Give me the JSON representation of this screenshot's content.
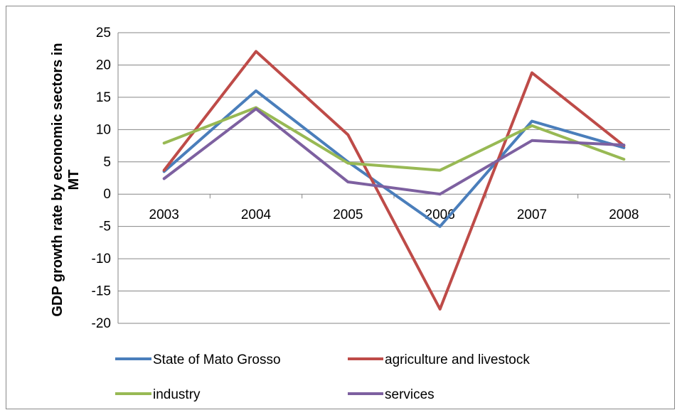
{
  "chart_data": {
    "type": "line",
    "title": "",
    "xlabel": "",
    "ylabel": "GDP growth rate by economic sectors in MT",
    "ylabel_lines": [
      "GDP growth rate by economic sectors in",
      "MT"
    ],
    "ylim": [
      -20,
      25
    ],
    "yticks": [
      25,
      20,
      15,
      10,
      5,
      0,
      -5,
      -10,
      -15,
      -20
    ],
    "categories": [
      "2003",
      "2004",
      "2005",
      "2006",
      "2007",
      "2008"
    ],
    "grid": true,
    "legend_position": "bottom",
    "series": [
      {
        "name": "State of Mato Grosso",
        "color": "#4a7ebb",
        "values": [
          3.5,
          16.0,
          5.0,
          -5.0,
          11.3,
          7.2
        ]
      },
      {
        "name": "agriculture and livestock",
        "color": "#be4b48",
        "values": [
          3.7,
          22.1,
          9.2,
          -17.8,
          18.8,
          7.5
        ]
      },
      {
        "name": "industry",
        "color": "#98b954",
        "values": [
          7.9,
          13.4,
          4.8,
          3.7,
          10.6,
          5.4
        ]
      },
      {
        "name": "services",
        "color": "#7d60a0",
        "values": [
          2.4,
          13.2,
          1.9,
          0.0,
          8.3,
          7.6
        ]
      }
    ]
  }
}
